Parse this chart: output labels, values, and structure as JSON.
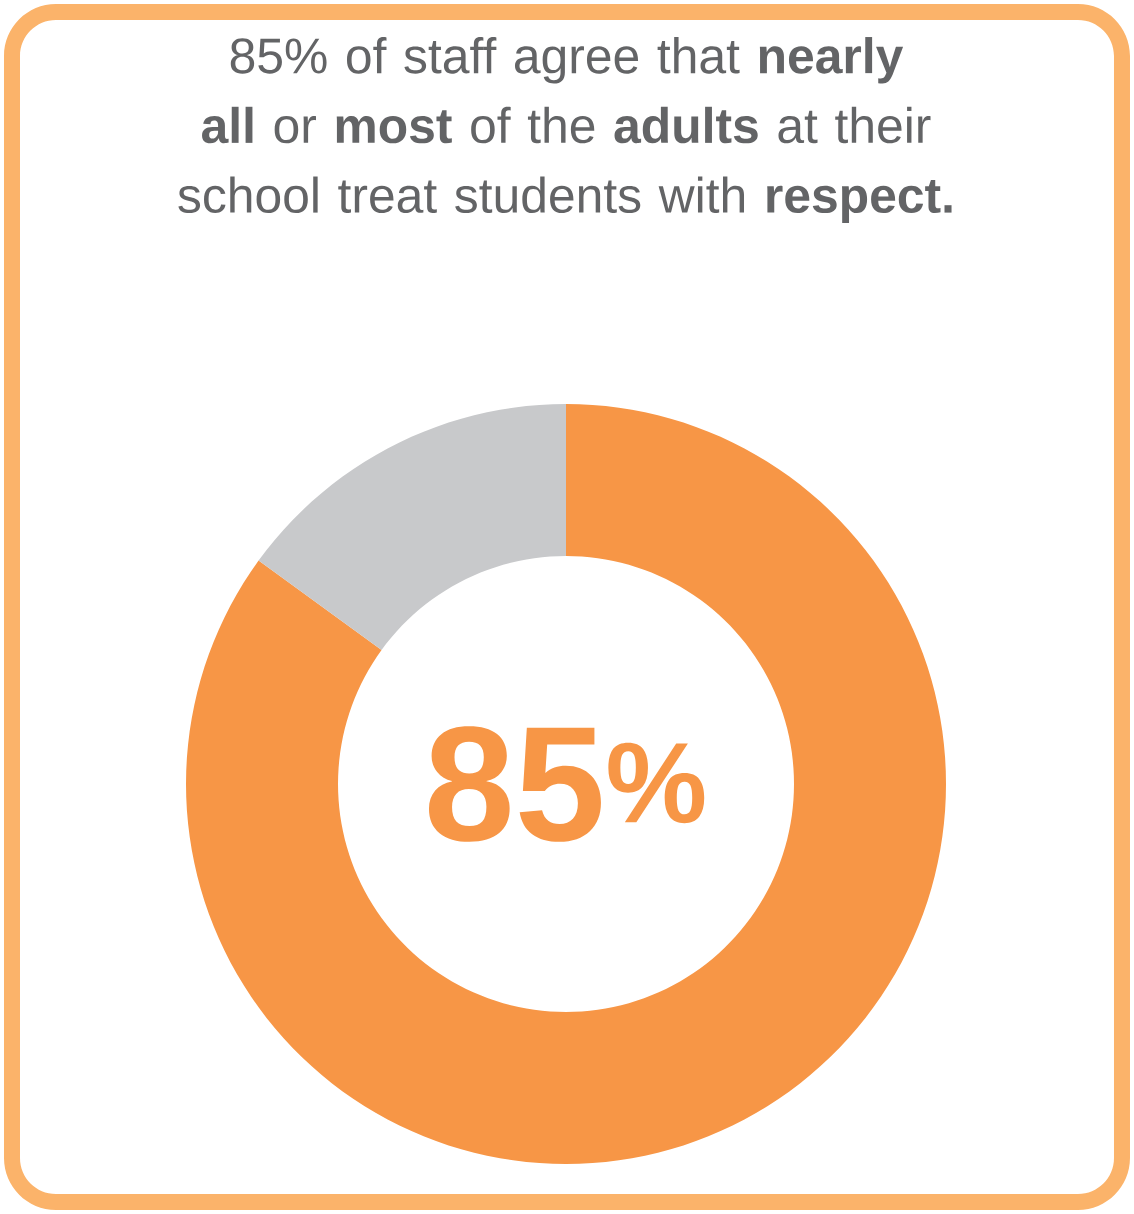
{
  "chart_data": {
    "type": "donut",
    "title": "85% of staff agree that **nearly all** or **most** of the **adults** at their school treat students with **respect.**",
    "categories": [
      null,
      null
    ],
    "values": [
      85,
      15
    ],
    "colors": [
      "#f79646",
      "#c8c9cb"
    ],
    "annotations": [
      "85$^{%}$"
    ]
  }
}
